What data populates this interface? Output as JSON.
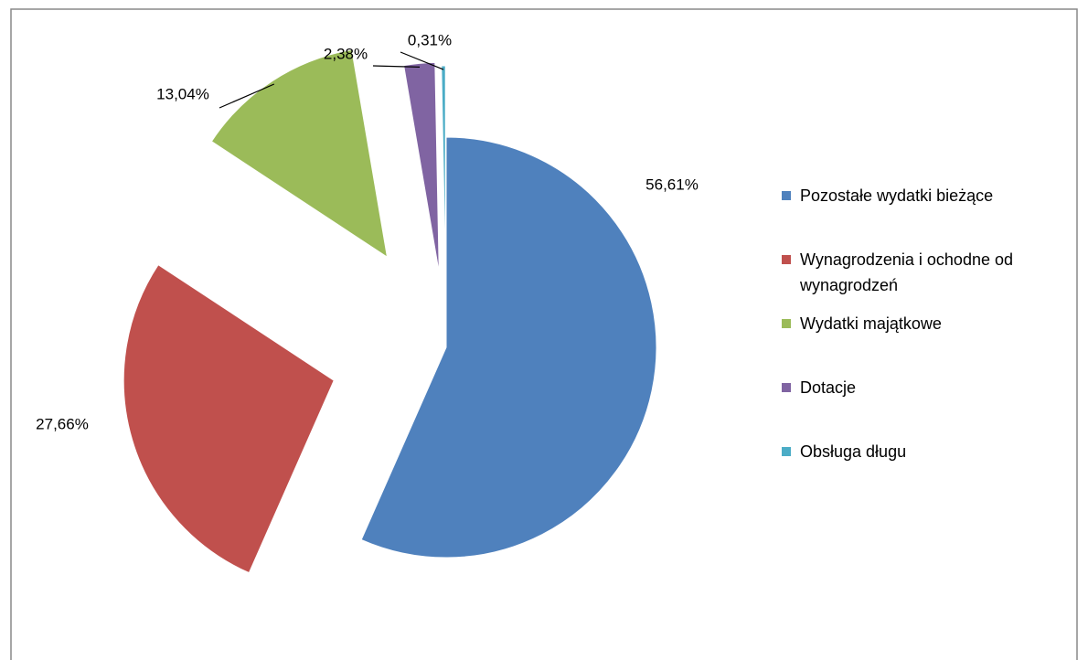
{
  "chart_data": {
    "type": "pie",
    "categories": [
      "Pozostałe wydatki bieżące",
      "Wynagrodzenia i ochodne od wynagrodzeń",
      "Wydatki majątkowe",
      "Dotacje",
      "Obsługa długu"
    ],
    "values": [
      56.61,
      27.66,
      13.04,
      2.38,
      0.31
    ],
    "value_labels": [
      "56,61%",
      "27,66%",
      "13,04%",
      "2,38%",
      "0,31%"
    ],
    "colors": [
      "#4f81bd",
      "#c0504d",
      "#9bbb59",
      "#8064a2",
      "#4bacc6"
    ],
    "legend": "right"
  }
}
